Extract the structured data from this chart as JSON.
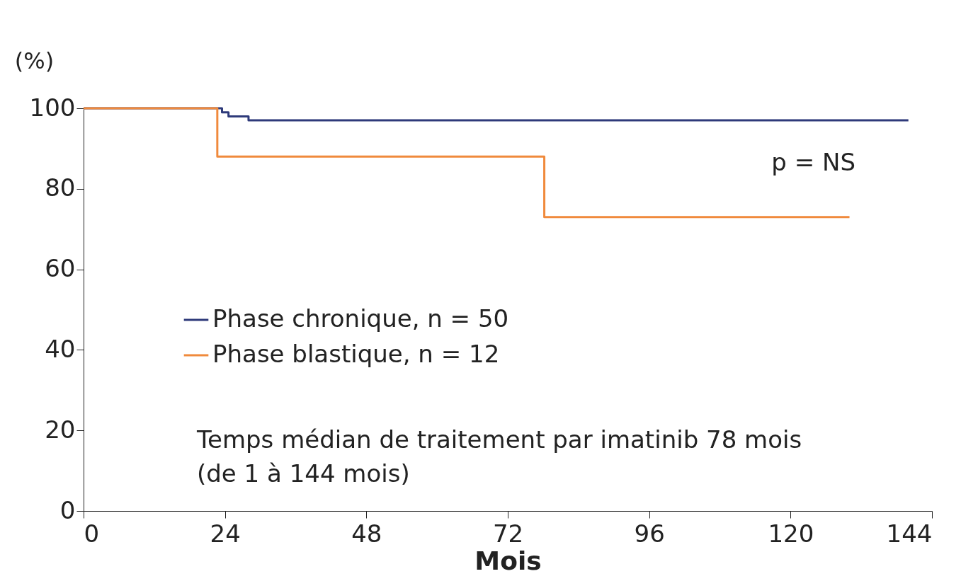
{
  "chart_data": {
    "type": "step",
    "xlabel": "Mois",
    "ylabel": "(%)",
    "series": [
      {
        "name": "Phase chronique, n = 50",
        "color": "#2e3a7a",
        "x": [
          0,
          23.5,
          24.6,
          28,
          140
        ],
        "values": [
          100,
          99,
          98,
          97,
          97
        ]
      },
      {
        "name": "Phase blastique, n = 12",
        "color": "#f08a3c",
        "x": [
          0,
          22.7,
          78.2,
          130
        ],
        "values": [
          100,
          88,
          73,
          73
        ]
      }
    ],
    "xlim": [
      0,
      144
    ],
    "xticks": [
      0,
      24,
      48,
      72,
      96,
      120,
      144
    ],
    "ylim": [
      0,
      100
    ],
    "yticks": [
      0,
      20,
      40,
      60,
      80,
      100
    ],
    "grid": false,
    "legend": "left",
    "marker": "none",
    "line_style": "solid",
    "annotations": [
      "p = NS",
      "Temps médian de traitement par imatinib 78 mois",
      "(de 1 à 144 mois)"
    ]
  }
}
